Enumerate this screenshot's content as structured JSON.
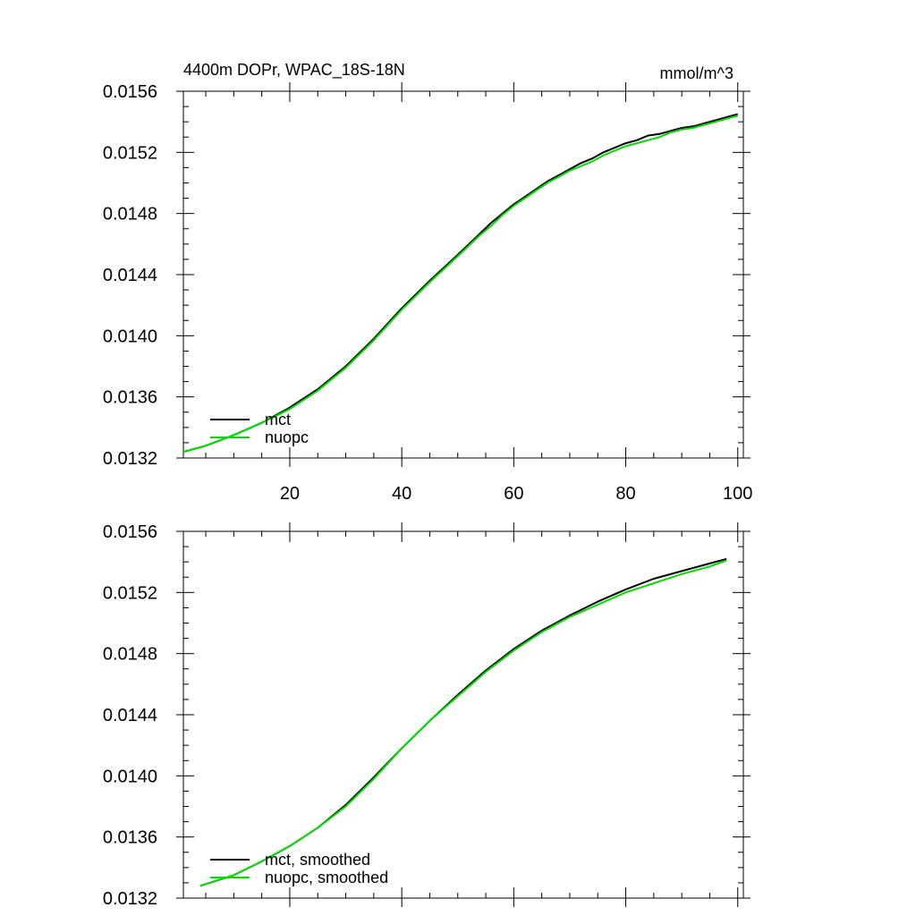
{
  "chart_data": [
    {
      "type": "line",
      "title": "4400m DOPr, WPAC_18S-18N",
      "units": "mmol/m^3",
      "xlim": [
        1,
        101
      ],
      "ylim": [
        0.0132,
        0.0156
      ],
      "xticks": [
        "20",
        "40",
        "60",
        "80",
        "100"
      ],
      "yticks": [
        "0.0132",
        "0.0136",
        "0.0140",
        "0.0144",
        "0.0148",
        "0.0152",
        "0.0156"
      ],
      "legend_position": "bottom-left",
      "series": [
        {
          "name": "mct",
          "color": "#000000",
          "x": [
            1,
            5,
            10,
            15,
            20,
            25,
            30,
            35,
            40,
            45,
            50,
            52,
            54,
            56,
            58,
            60,
            62,
            64,
            66,
            68,
            70,
            72,
            74,
            76,
            78,
            80,
            82,
            84,
            86,
            88,
            90,
            92,
            94,
            96,
            98,
            100
          ],
          "y": [
            0.01324,
            0.01328,
            0.01335,
            0.01343,
            0.01353,
            0.01365,
            0.0138,
            0.01398,
            0.01418,
            0.01436,
            0.01453,
            0.0146,
            0.01467,
            0.01474,
            0.0148,
            0.01486,
            0.01491,
            0.01496,
            0.01501,
            0.01505,
            0.01509,
            0.01513,
            0.01516,
            0.0152,
            0.01523,
            0.01526,
            0.01528,
            0.01531,
            0.01532,
            0.01534,
            0.01536,
            0.01537,
            0.01539,
            0.01541,
            0.01543,
            0.01545
          ]
        },
        {
          "name": "nuopc",
          "color": "#00dd00",
          "x": [
            1,
            5,
            10,
            15,
            20,
            25,
            30,
            35,
            40,
            45,
            50,
            52,
            54,
            56,
            58,
            60,
            62,
            64,
            66,
            68,
            70,
            72,
            74,
            76,
            78,
            80,
            82,
            84,
            86,
            88,
            90,
            92,
            94,
            96,
            98,
            100
          ],
          "y": [
            0.01324,
            0.01328,
            0.01335,
            0.01343,
            0.01352,
            0.01364,
            0.01379,
            0.01397,
            0.01417,
            0.01435,
            0.01452,
            0.01459,
            0.01466,
            0.01472,
            0.01479,
            0.01485,
            0.0149,
            0.01495,
            0.015,
            0.01504,
            0.01508,
            0.01511,
            0.01514,
            0.01518,
            0.01521,
            0.01524,
            0.01526,
            0.01528,
            0.0153,
            0.01533,
            0.01535,
            0.01536,
            0.01538,
            0.0154,
            0.01542,
            0.01544
          ]
        }
      ]
    },
    {
      "type": "line",
      "xlim": [
        1,
        101
      ],
      "ylim": [
        0.0132,
        0.0156
      ],
      "yticks": [
        "0.0132",
        "0.0136",
        "0.0140",
        "0.0144",
        "0.0148",
        "0.0152",
        "0.0156"
      ],
      "legend_position": "bottom-left",
      "series": [
        {
          "name": "mct, smoothed",
          "color": "#000000",
          "x": [
            4,
            10,
            15,
            20,
            25,
            30,
            35,
            40,
            45,
            50,
            55,
            60,
            65,
            70,
            75,
            80,
            85,
            90,
            95,
            98
          ],
          "y": [
            0.01328,
            0.01335,
            0.01344,
            0.01354,
            0.01366,
            0.01381,
            0.01399,
            0.01418,
            0.01436,
            0.01453,
            0.01469,
            0.01483,
            0.01495,
            0.01505,
            0.01514,
            0.01522,
            0.01529,
            0.01534,
            0.01539,
            0.01542
          ]
        },
        {
          "name": "nuopc, smoothed",
          "color": "#00dd00",
          "x": [
            4,
            10,
            15,
            20,
            25,
            30,
            35,
            40,
            45,
            50,
            55,
            60,
            65,
            70,
            75,
            80,
            85,
            90,
            95,
            98
          ],
          "y": [
            0.01328,
            0.01335,
            0.01344,
            0.01354,
            0.01366,
            0.0138,
            0.01398,
            0.01418,
            0.01436,
            0.01452,
            0.01468,
            0.01482,
            0.01494,
            0.01504,
            0.01512,
            0.0152,
            0.01526,
            0.01532,
            0.01537,
            0.01541
          ]
        }
      ]
    }
  ]
}
